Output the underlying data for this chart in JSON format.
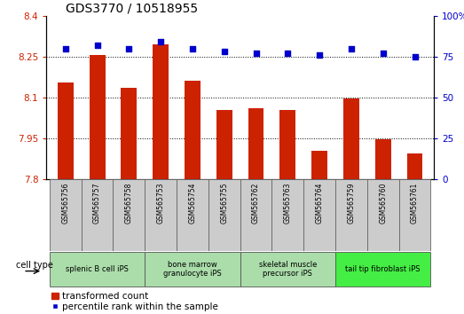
{
  "title": "GDS3770 / 10518955",
  "samples": [
    "GSM565756",
    "GSM565757",
    "GSM565758",
    "GSM565753",
    "GSM565754",
    "GSM565755",
    "GSM565762",
    "GSM565763",
    "GSM565764",
    "GSM565759",
    "GSM565760",
    "GSM565761"
  ],
  "transformed_counts": [
    8.155,
    8.255,
    8.135,
    8.295,
    8.16,
    8.055,
    8.06,
    8.055,
    7.905,
    8.095,
    7.945,
    7.895
  ],
  "percentile_ranks": [
    80,
    82,
    80,
    84,
    80,
    78,
    77,
    77,
    76,
    80,
    77,
    75
  ],
  "ylim_left": [
    7.8,
    8.4
  ],
  "ylim_right": [
    0,
    100
  ],
  "yticks_left": [
    7.8,
    7.95,
    8.1,
    8.25,
    8.4
  ],
  "yticks_right": [
    0,
    25,
    50,
    75,
    100
  ],
  "bar_color": "#cc2200",
  "dot_color": "#0000cc",
  "cell_type_groups": [
    {
      "label": "splenic B cell iPS",
      "start": 0,
      "end": 3,
      "color": "#aaddaa"
    },
    {
      "label": "bone marrow\ngranulocyte iPS",
      "start": 3,
      "end": 6,
      "color": "#aaddaa"
    },
    {
      "label": "skeletal muscle\nprecursor iPS",
      "start": 6,
      "end": 9,
      "color": "#aaddaa"
    },
    {
      "label": "tail tip fibroblast iPS",
      "start": 9,
      "end": 12,
      "color": "#44ee44"
    }
  ],
  "cell_type_label": "cell type",
  "legend_bar_label": "transformed count",
  "legend_dot_label": "percentile rank within the sample",
  "grid_color": "#000000",
  "tick_label_color_left": "#cc2200",
  "tick_label_color_right": "#0000cc",
  "title_fontsize": 10,
  "axis_fontsize": 7.5,
  "label_fontsize": 5.5,
  "group_fontsize": 6,
  "legend_fontsize": 7.5,
  "sample_box_color": "#cccccc",
  "background_color": "#ffffff"
}
